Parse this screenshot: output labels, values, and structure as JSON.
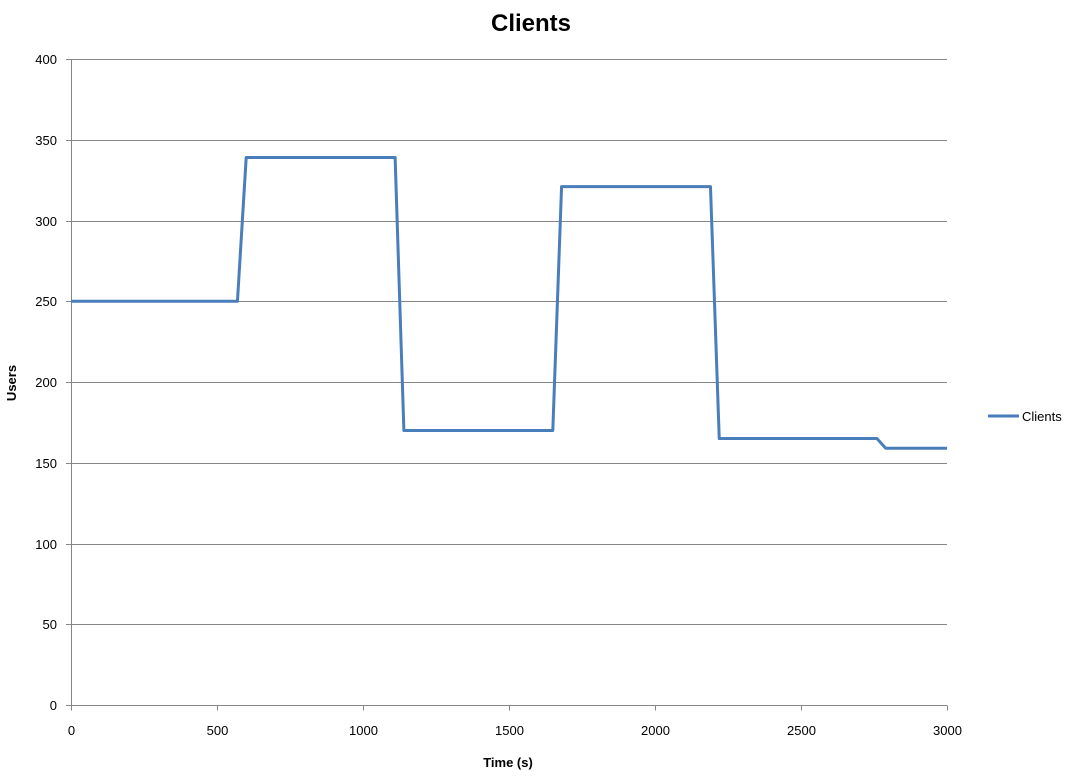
{
  "chart_data": {
    "type": "line",
    "title": "Clients",
    "xlabel": "Time (s)",
    "ylabel": "Users",
    "xlim": [
      0,
      3000
    ],
    "ylim": [
      0,
      400
    ],
    "x_ticks": [
      0,
      500,
      1000,
      1500,
      2000,
      2500,
      3000
    ],
    "y_ticks": [
      0,
      50,
      100,
      150,
      200,
      250,
      300,
      350,
      400
    ],
    "x_tick_labels": [
      "0",
      "500",
      "1000",
      "1500",
      "2000",
      "2500",
      "3000"
    ],
    "y_tick_labels": [
      "0",
      "50",
      "100",
      "150",
      "200",
      "250",
      "300",
      "350",
      "400"
    ],
    "grid": "horizontal",
    "legend_position": "right",
    "series": [
      {
        "name": "Clients",
        "color": "#4a7ebb",
        "x": [
          0,
          570,
          600,
          1110,
          1140,
          1650,
          1680,
          2190,
          2220,
          2760,
          2790,
          3000
        ],
        "y": [
          250,
          250,
          339,
          339,
          170,
          170,
          321,
          321,
          165,
          165,
          159,
          159
        ]
      }
    ]
  }
}
